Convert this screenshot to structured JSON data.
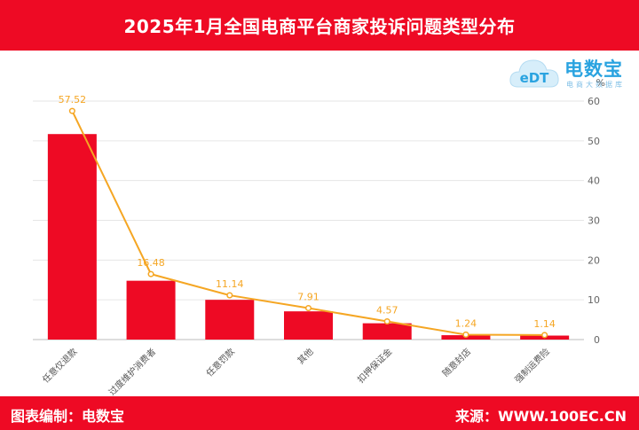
{
  "header": {
    "title": "2025年1月全国电商平台商家投诉问题类型分布"
  },
  "footer": {
    "left": "图表编制：电数宝",
    "right": "来源：WWW.100EC.CN"
  },
  "logo": {
    "name": "电数宝",
    "sub": "电商大数据库",
    "mark": "eDT"
  },
  "chart_data": {
    "type": "bar",
    "title": "2025年1月全国电商平台商家投诉问题类型分布",
    "categories": [
      "任意仅退款",
      "过度维护消费者",
      "任意罚款",
      "其他",
      "扣押保证金",
      "随意封店",
      "强制运费险"
    ],
    "values": [
      51.7,
      14.8,
      10.0,
      7.1,
      4.1,
      1.1,
      1.0
    ],
    "line_values": [
      57.52,
      16.48,
      11.14,
      7.91,
      4.57,
      1.24,
      1.14
    ],
    "data_labels": [
      "57.52",
      "16.48",
      "11.14",
      "7.91",
      "4.57",
      "1.24",
      "1.14"
    ],
    "y_unit": "%",
    "ylim": [
      0,
      60
    ],
    "yticks": [
      0,
      10,
      20,
      30,
      40,
      50,
      60
    ],
    "y_axis_side": "right",
    "grid": true,
    "colors": {
      "bar": "#ee0a24",
      "line": "#f5a623",
      "grid": "#e6e6e6"
    }
  }
}
